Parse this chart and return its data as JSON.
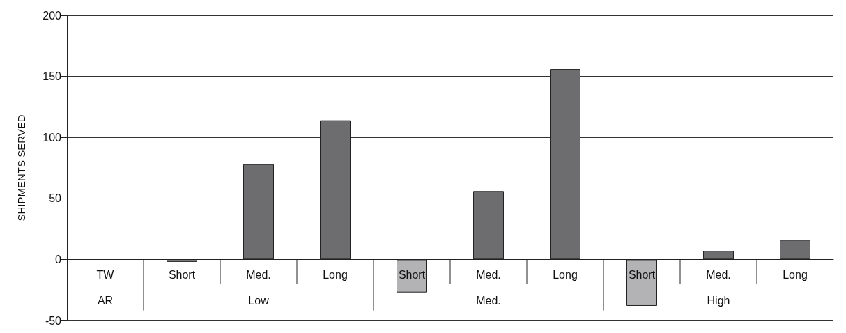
{
  "chart_data": {
    "type": "bar",
    "ylabel": "SHIPMENTS SERVED",
    "categories": [
      "TW",
      "Short",
      "Med.",
      "Long",
      "Short",
      "Med.",
      "Long",
      "Short",
      "Med.",
      "Long"
    ],
    "values": [
      null,
      -2,
      78,
      114,
      -27,
      56,
      156,
      -38,
      7,
      16
    ],
    "colors": [
      "#6d6d6f",
      "#b3b3b5",
      "#6d6d6f",
      "#6d6d6f",
      "#b3b3b5",
      "#6d6d6f",
      "#6d6d6f",
      "#b3b3b5",
      "#6d6d6f",
      "#6d6d6f"
    ],
    "annotations": [
      "AR",
      "Low",
      "Med.",
      "High"
    ],
    "ylim": [
      -50,
      200
    ],
    "yticks": [
      -50,
      0,
      50,
      100,
      150,
      200
    ],
    "grid": "y"
  }
}
